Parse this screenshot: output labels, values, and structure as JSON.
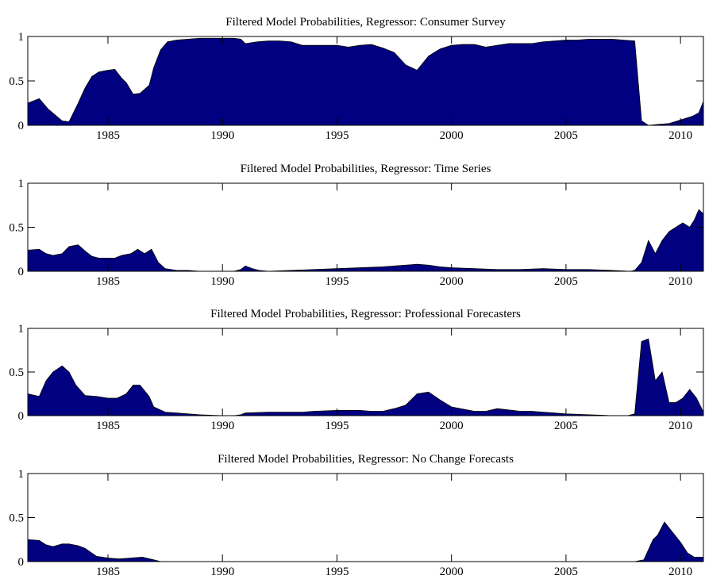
{
  "colors": {
    "area_fill": "#000080",
    "axis": "#000000",
    "background": "#ffffff"
  },
  "chart_data": [
    {
      "type": "area",
      "title": "Filtered Model Probabilities, Regressor: Consumer Survey",
      "xlim": [
        1981.5,
        2011.0
      ],
      "ylim": [
        0,
        1
      ],
      "xticks": [
        1985,
        1990,
        1995,
        2000,
        2005,
        2010
      ],
      "xtick_labels": [
        "1985",
        "1990",
        "1995",
        "2000",
        "2005",
        "2010"
      ],
      "yticks": [
        0,
        0.5,
        1
      ],
      "ytick_labels": [
        "0",
        "0.5",
        "1"
      ],
      "grid": false,
      "x": [
        1981.5,
        1982.0,
        1982.4,
        1983.0,
        1983.3,
        1983.7,
        1984.0,
        1984.3,
        1984.6,
        1985.0,
        1985.3,
        1985.6,
        1985.8,
        1986.1,
        1986.4,
        1986.8,
        1987.0,
        1987.3,
        1987.6,
        1988.0,
        1988.5,
        1989.0,
        1989.5,
        1990.0,
        1990.5,
        1990.8,
        1991.0,
        1991.5,
        1992.0,
        1992.5,
        1993.0,
        1993.5,
        1994.0,
        1994.5,
        1995.0,
        1995.5,
        1996.0,
        1996.5,
        1997.0,
        1997.5,
        1998.0,
        1998.5,
        1999.0,
        1999.5,
        2000.0,
        2000.5,
        2001.0,
        2001.5,
        2002.0,
        2002.5,
        2003.0,
        2003.5,
        2004.0,
        2004.5,
        2005.0,
        2005.5,
        2006.0,
        2006.5,
        2007.0,
        2007.5,
        2008.0,
        2008.3,
        2008.6,
        2009.0,
        2009.5,
        2010.0,
        2010.5,
        2010.8,
        2011.0
      ],
      "y": [
        0.25,
        0.3,
        0.18,
        0.05,
        0.04,
        0.25,
        0.42,
        0.55,
        0.6,
        0.62,
        0.63,
        0.53,
        0.48,
        0.35,
        0.36,
        0.45,
        0.65,
        0.85,
        0.94,
        0.96,
        0.97,
        0.98,
        0.98,
        0.98,
        0.98,
        0.97,
        0.92,
        0.94,
        0.95,
        0.95,
        0.94,
        0.9,
        0.9,
        0.9,
        0.9,
        0.88,
        0.9,
        0.91,
        0.87,
        0.82,
        0.68,
        0.62,
        0.78,
        0.86,
        0.9,
        0.91,
        0.91,
        0.88,
        0.9,
        0.92,
        0.92,
        0.92,
        0.94,
        0.95,
        0.96,
        0.96,
        0.97,
        0.97,
        0.97,
        0.96,
        0.95,
        0.05,
        0.0,
        0.01,
        0.02,
        0.06,
        0.1,
        0.14,
        0.27
      ]
    },
    {
      "type": "area",
      "title": "Filtered Model Probabilities, Regressor: Time Series",
      "xlim": [
        1981.5,
        2011.0
      ],
      "ylim": [
        0,
        1
      ],
      "xticks": [
        1985,
        1990,
        1995,
        2000,
        2005,
        2010
      ],
      "xtick_labels": [
        "1985",
        "1990",
        "1995",
        "2000",
        "2005",
        "2010"
      ],
      "yticks": [
        0,
        0.5,
        1
      ],
      "ytick_labels": [
        "0",
        "0.5",
        "1"
      ],
      "grid": false,
      "x": [
        1981.5,
        1982.0,
        1982.3,
        1982.6,
        1983.0,
        1983.3,
        1983.7,
        1984.0,
        1984.3,
        1984.6,
        1985.0,
        1985.3,
        1985.6,
        1986.0,
        1986.3,
        1986.6,
        1986.9,
        1987.2,
        1987.5,
        1988.0,
        1988.5,
        1989.0,
        1989.5,
        1990.0,
        1990.5,
        1990.8,
        1991.0,
        1991.3,
        1991.6,
        1992.0,
        1993.0,
        1994.0,
        1995.0,
        1996.0,
        1997.0,
        1998.0,
        1998.5,
        1999.0,
        1999.5,
        2000.0,
        2001.0,
        2002.0,
        2003.0,
        2004.0,
        2005.0,
        2006.0,
        2007.0,
        2007.8,
        2008.0,
        2008.3,
        2008.6,
        2008.9,
        2009.2,
        2009.5,
        2009.8,
        2010.1,
        2010.4,
        2010.6,
        2010.8,
        2011.0
      ],
      "y": [
        0.24,
        0.25,
        0.2,
        0.18,
        0.2,
        0.28,
        0.3,
        0.23,
        0.17,
        0.15,
        0.15,
        0.15,
        0.18,
        0.2,
        0.25,
        0.2,
        0.25,
        0.1,
        0.03,
        0.01,
        0.01,
        0.0,
        0.0,
        0.0,
        0.0,
        0.02,
        0.06,
        0.03,
        0.01,
        0.0,
        0.01,
        0.02,
        0.03,
        0.04,
        0.05,
        0.07,
        0.08,
        0.07,
        0.05,
        0.04,
        0.03,
        0.02,
        0.02,
        0.03,
        0.02,
        0.02,
        0.01,
        0.0,
        0.01,
        0.1,
        0.35,
        0.2,
        0.35,
        0.45,
        0.5,
        0.55,
        0.5,
        0.58,
        0.7,
        0.65
      ]
    },
    {
      "type": "area",
      "title": "Filtered Model Probabilities, Regressor: Professional Forecasters",
      "xlim": [
        1981.5,
        2011.0
      ],
      "ylim": [
        0,
        1
      ],
      "xticks": [
        1985,
        1990,
        1995,
        2000,
        2005,
        2010
      ],
      "xtick_labels": [
        "1985",
        "1990",
        "1995",
        "2000",
        "2005",
        "2010"
      ],
      "yticks": [
        0,
        0.5,
        1
      ],
      "ytick_labels": [
        "0",
        "0.5",
        "1"
      ],
      "grid": false,
      "x": [
        1981.5,
        1982.0,
        1982.3,
        1982.6,
        1983.0,
        1983.3,
        1983.6,
        1984.0,
        1984.5,
        1985.0,
        1985.4,
        1985.8,
        1986.1,
        1986.4,
        1986.8,
        1987.0,
        1987.5,
        1988.0,
        1988.5,
        1989.0,
        1990.0,
        1990.5,
        1990.8,
        1991.0,
        1992.0,
        1993.0,
        1993.5,
        1994.0,
        1995.0,
        1996.0,
        1996.5,
        1997.0,
        1997.5,
        1998.0,
        1998.5,
        1999.0,
        1999.5,
        2000.0,
        2001.0,
        2001.5,
        2002.0,
        2003.0,
        2003.5,
        2004.0,
        2004.5,
        2005.0,
        2006.0,
        2007.0,
        2007.7,
        2008.0,
        2008.3,
        2008.6,
        2008.9,
        2009.2,
        2009.5,
        2009.8,
        2010.1,
        2010.4,
        2010.7,
        2011.0
      ],
      "y": [
        0.25,
        0.22,
        0.4,
        0.5,
        0.57,
        0.5,
        0.35,
        0.23,
        0.22,
        0.2,
        0.2,
        0.25,
        0.35,
        0.35,
        0.22,
        0.1,
        0.04,
        0.03,
        0.02,
        0.01,
        0.0,
        0.0,
        0.01,
        0.03,
        0.04,
        0.04,
        0.04,
        0.05,
        0.06,
        0.06,
        0.05,
        0.05,
        0.08,
        0.12,
        0.25,
        0.27,
        0.18,
        0.1,
        0.05,
        0.05,
        0.08,
        0.05,
        0.05,
        0.04,
        0.03,
        0.02,
        0.01,
        0.0,
        0.0,
        0.02,
        0.85,
        0.88,
        0.4,
        0.5,
        0.15,
        0.15,
        0.2,
        0.3,
        0.2,
        0.04
      ]
    },
    {
      "type": "area",
      "title": "Filtered Model Probabilities, Regressor: No Change Forecasts",
      "xlim": [
        1981.5,
        2011.0
      ],
      "ylim": [
        0,
        1
      ],
      "xticks": [
        1985,
        1990,
        1995,
        2000,
        2005,
        2010
      ],
      "xtick_labels": [
        "1985",
        "1990",
        "1995",
        "2000",
        "2005",
        "2010"
      ],
      "yticks": [
        0,
        0.5,
        1
      ],
      "ytick_labels": [
        "0",
        "0.5",
        "1"
      ],
      "grid": false,
      "x": [
        1981.5,
        1982.0,
        1982.3,
        1982.6,
        1983.0,
        1983.3,
        1983.7,
        1984.0,
        1984.5,
        1985.0,
        1985.5,
        1986.0,
        1986.5,
        1987.0,
        1987.3,
        1988.0,
        1990.0,
        1995.0,
        2000.0,
        2005.0,
        2008.0,
        2008.4,
        2008.8,
        2009.0,
        2009.3,
        2009.6,
        2010.0,
        2010.3,
        2010.6,
        2011.0
      ],
      "y": [
        0.25,
        0.24,
        0.19,
        0.17,
        0.2,
        0.2,
        0.18,
        0.15,
        0.06,
        0.04,
        0.03,
        0.04,
        0.05,
        0.02,
        0.0,
        0.0,
        0.0,
        0.0,
        0.0,
        0.0,
        0.0,
        0.02,
        0.25,
        0.3,
        0.45,
        0.35,
        0.22,
        0.1,
        0.05,
        0.05
      ]
    }
  ]
}
